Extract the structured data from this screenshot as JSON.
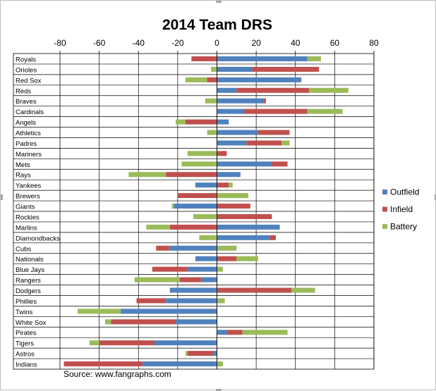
{
  "chart_data": {
    "type": "bar",
    "orientation": "horizontal",
    "stacked": true,
    "title": "2014 Team DRS",
    "source": "Source: www.fangraphs.com",
    "xlim": [
      -80,
      80
    ],
    "xticks": [
      -80,
      -60,
      -40,
      -20,
      0,
      20,
      40,
      60,
      80
    ],
    "xaxis_position": "top",
    "grid": true,
    "legend_position": "right",
    "categories": [
      "Royals",
      "Orioles",
      "Red Sox",
      "Reds",
      "Braves",
      "Cardinals",
      "Angels",
      "Athletics",
      "Padres",
      "Mariners",
      "Mets",
      "Rays",
      "Yankees",
      "Brewers",
      "Giants",
      "Rockies",
      "Marlins",
      "Diamondbacks",
      "Cubs",
      "Nationals",
      "Blue Jays",
      "Rangers",
      "Dodgers",
      "Phillies",
      "Twins",
      "White Sox",
      "Pirates",
      "Tigers",
      "Astros",
      "Indians"
    ],
    "series": [
      {
        "name": "Outfield",
        "color": "#4f81bd",
        "values": [
          46,
          18,
          43,
          10,
          24,
          14,
          6,
          21,
          15,
          0,
          28,
          12,
          -11,
          0,
          -22,
          0,
          32,
          27,
          -24,
          -11,
          -15,
          -8,
          -24,
          -26,
          -49,
          -21,
          5,
          -32,
          -2,
          -38
        ]
      },
      {
        "name": "Infield",
        "color": "#c0504d",
        "values": [
          -13,
          34,
          -5,
          37,
          1,
          32,
          -16,
          16,
          18,
          5,
          8,
          -26,
          6,
          -20,
          17,
          28,
          -24,
          3,
          -7,
          10,
          -18,
          -11,
          38,
          -15,
          0,
          -33,
          8,
          -28,
          -13,
          -40
        ]
      },
      {
        "name": "Battery",
        "color": "#9bbb59",
        "values": [
          7,
          -3,
          -11,
          20,
          -6,
          18,
          -5,
          -5,
          4,
          -15,
          -18,
          -19,
          2,
          16,
          -1,
          -12,
          -12,
          -9,
          10,
          11,
          3,
          -23,
          12,
          4,
          -22,
          -3,
          23,
          -5,
          -1,
          3
        ]
      }
    ]
  }
}
